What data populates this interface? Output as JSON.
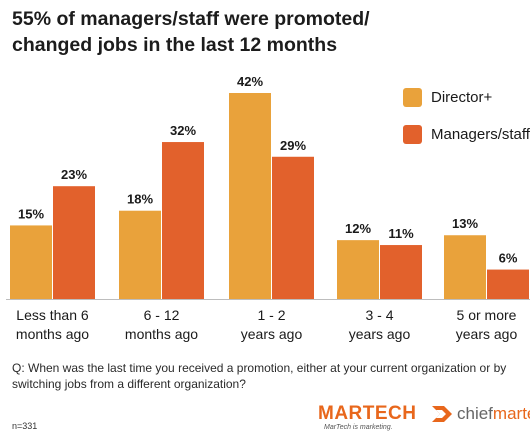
{
  "title_lines": [
    "55% of managers/staff were promoted/",
    "changed jobs in the last 12 months"
  ],
  "question": "Q: When was the last time you received a promotion, either at your current organization or by switching jobs from a different organization?",
  "sample_size": "n=331",
  "logos": {
    "martech_word": "MARTECH",
    "martech_tagline": "MarTech is marketing.",
    "chiefmartec_prefix": "chief",
    "chiefmartec_suffix": "martec"
  },
  "colors": {
    "director": "#e9a23b",
    "managers": "#e2612c"
  },
  "chart_data": {
    "type": "bar",
    "categories": [
      [
        "Less than 6",
        "months ago"
      ],
      [
        "6 - 12",
        "months ago"
      ],
      [
        "1 - 2",
        "years ago"
      ],
      [
        "3 - 4",
        "years ago"
      ],
      [
        "5 or more",
        "years ago"
      ]
    ],
    "series": [
      {
        "name": "Director+",
        "values": [
          15,
          18,
          42,
          12,
          13
        ],
        "labels": [
          "15%",
          "18%",
          "42%",
          "12%",
          "13%"
        ]
      },
      {
        "name": "Managers/staff",
        "values": [
          23,
          32,
          29,
          11,
          6
        ],
        "labels": [
          "23%",
          "32%",
          "29%",
          "11%",
          "6%"
        ]
      }
    ],
    "ylim": [
      0,
      42
    ],
    "legend": "top-right",
    "grid": false
  }
}
